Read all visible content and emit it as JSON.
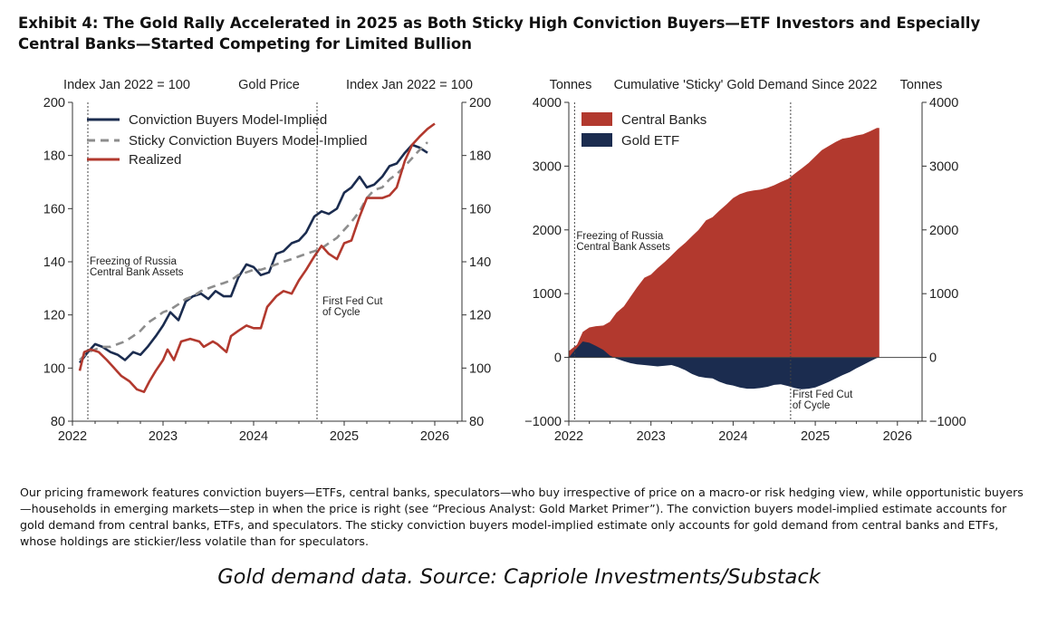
{
  "exhibit_title": "Exhibit 4: The Gold Rally Accelerated in 2025 as Both Sticky High Conviction Buyers—ETF Investors and Especially Central Banks—Started Competing for Limited Bullion",
  "footnote": "Our pricing framework features conviction buyers—ETFs, central banks, speculators—who buy irrespective of price on a macro-or risk hedging view, while opportunistic buyers—households in emerging markets—step in when the price is right (see “Precious Analyst: Gold Market Primer”). The conviction buyers model-implied estimate accounts for gold demand from central banks, ETFs, and speculators. The sticky conviction buyers model-implied estimate only accounts for gold demand from central banks and ETFs, whose holdings are stickier/less volatile than for speculators.",
  "source": "Gold demand data. Source: Capriole Investments/Substack",
  "colors": {
    "navy": "#1b2c4f",
    "red": "#b2392e",
    "gray": "#8d8d8d",
    "axis": "#333333"
  },
  "chart_data": [
    {
      "type": "line",
      "title": "Gold Price",
      "ylabel_left": "Index Jan 2022 = 100",
      "ylabel_right": "Index Jan 2022 = 100",
      "xlim": [
        2022.0,
        2026.3
      ],
      "ylim": [
        80,
        200
      ],
      "xticks": [
        2022,
        2023,
        2024,
        2025,
        2026
      ],
      "yticks": [
        80,
        100,
        120,
        140,
        160,
        180,
        200
      ],
      "series": [
        {
          "name": "Conviction Buyers Model-Implied",
          "color": "#1b2c4f",
          "style": "solid",
          "x": [
            2022.08,
            2022.17,
            2022.25,
            2022.33,
            2022.42,
            2022.5,
            2022.58,
            2022.67,
            2022.75,
            2022.83,
            2022.92,
            2023.0,
            2023.08,
            2023.17,
            2023.25,
            2023.33,
            2023.42,
            2023.5,
            2023.58,
            2023.67,
            2023.75,
            2023.83,
            2023.92,
            2024.0,
            2024.08,
            2024.17,
            2024.25,
            2024.33,
            2024.42,
            2024.5,
            2024.58,
            2024.67,
            2024.75,
            2024.83,
            2024.92,
            2025.0,
            2025.08,
            2025.17,
            2025.25,
            2025.33,
            2025.42,
            2025.5,
            2025.58,
            2025.67,
            2025.75,
            2025.83,
            2025.92
          ],
          "y": [
            102,
            106,
            109,
            108,
            106,
            105,
            103,
            106,
            105,
            108,
            112,
            116,
            121,
            118,
            125,
            127,
            128,
            126,
            129,
            127,
            127,
            134,
            139,
            138,
            135,
            136,
            143,
            144,
            147,
            148,
            151,
            157,
            159,
            158,
            160,
            166,
            168,
            172,
            168,
            169,
            172,
            176,
            177,
            181,
            184,
            183,
            181
          ]
        },
        {
          "name": "Sticky Conviction Buyers Model-Implied",
          "color": "#8d8d8d",
          "style": "dashed",
          "x": [
            2022.08,
            2022.17,
            2022.25,
            2022.33,
            2022.42,
            2022.5,
            2022.58,
            2022.67,
            2022.75,
            2022.83,
            2022.92,
            2023.0,
            2023.08,
            2023.17,
            2023.25,
            2023.33,
            2023.42,
            2023.5,
            2023.58,
            2023.67,
            2023.75,
            2023.83,
            2023.92,
            2024.0,
            2024.08,
            2024.17,
            2024.25,
            2024.33,
            2024.42,
            2024.5,
            2024.58,
            2024.67,
            2024.75,
            2024.83,
            2024.92,
            2025.0,
            2025.08,
            2025.17,
            2025.25,
            2025.33,
            2025.42,
            2025.5,
            2025.58,
            2025.67,
            2025.75,
            2025.83,
            2025.92
          ],
          "y": [
            103,
            106,
            107,
            108,
            108,
            109,
            110,
            112,
            114,
            117,
            119,
            121,
            122,
            124,
            126,
            127,
            129,
            130,
            131,
            132,
            133,
            135,
            136,
            137,
            137,
            138,
            139,
            140,
            141,
            142,
            143,
            144,
            145,
            147,
            149,
            152,
            155,
            159,
            164,
            167,
            168,
            171,
            173,
            176,
            179,
            182,
            185
          ]
        },
        {
          "name": "Realized",
          "color": "#b2392e",
          "style": "solid",
          "x": [
            2022.08,
            2022.13,
            2022.2,
            2022.29,
            2022.38,
            2022.46,
            2022.54,
            2022.63,
            2022.71,
            2022.79,
            2022.85,
            2022.92,
            2023.0,
            2023.05,
            2023.12,
            2023.2,
            2023.3,
            2023.4,
            2023.45,
            2023.55,
            2023.6,
            2023.7,
            2023.75,
            2023.83,
            2023.92,
            2024.0,
            2024.08,
            2024.15,
            2024.25,
            2024.33,
            2024.42,
            2024.5,
            2024.58,
            2024.67,
            2024.75,
            2024.83,
            2024.92,
            2025.0,
            2025.08,
            2025.17,
            2025.25,
            2025.33,
            2025.42,
            2025.5,
            2025.58,
            2025.67,
            2025.75,
            2025.83,
            2025.92,
            2026.0
          ],
          "y": [
            99,
            106,
            107,
            106,
            103,
            100,
            97,
            95,
            92,
            91,
            95,
            99,
            103,
            107,
            103,
            110,
            111,
            110,
            108,
            110,
            109,
            106,
            112,
            114,
            116,
            115,
            115,
            123,
            127,
            129,
            128,
            133,
            137,
            142,
            146,
            143,
            141,
            147,
            148,
            157,
            164,
            164,
            164,
            165,
            168,
            178,
            184,
            187,
            190,
            192
          ]
        }
      ],
      "annotations": [
        {
          "x": 2022.17,
          "lines": [
            "Freezing of Russia",
            "Central Bank Assets"
          ]
        },
        {
          "x": 2024.7,
          "lines": [
            "First Fed Cut",
            "of Cycle"
          ]
        }
      ]
    },
    {
      "type": "area",
      "title": "Cumulative 'Sticky' Gold Demand Since 2022",
      "ylabel_left": "Tonnes",
      "ylabel_right": "Tonnes",
      "xlim": [
        2022.0,
        2026.3
      ],
      "ylim": [
        -1000,
        4000
      ],
      "xticks": [
        2022,
        2023,
        2024,
        2025,
        2026
      ],
      "yticks": [
        -1000,
        0,
        1000,
        2000,
        3000,
        4000
      ],
      "series": [
        {
          "name": "Central Banks",
          "color": "#b2392e",
          "x": [
            2022.0,
            2022.05,
            2022.1,
            2022.17,
            2022.25,
            2022.33,
            2022.42,
            2022.5,
            2022.58,
            2022.67,
            2022.75,
            2022.83,
            2022.92,
            2023.0,
            2023.08,
            2023.17,
            2023.25,
            2023.33,
            2023.42,
            2023.5,
            2023.58,
            2023.67,
            2023.75,
            2023.83,
            2023.92,
            2024.0,
            2024.08,
            2024.17,
            2024.25,
            2024.33,
            2024.42,
            2024.5,
            2024.58,
            2024.67,
            2024.75,
            2024.83,
            2024.92,
            2025.0,
            2025.08,
            2025.17,
            2025.25,
            2025.33,
            2025.42,
            2025.5,
            2025.58,
            2025.67,
            2025.75,
            2025.78
          ],
          "y": [
            100,
            150,
            200,
            400,
            470,
            490,
            500,
            560,
            700,
            800,
            950,
            1100,
            1250,
            1300,
            1400,
            1500,
            1600,
            1700,
            1800,
            1900,
            2000,
            2150,
            2200,
            2300,
            2400,
            2500,
            2560,
            2600,
            2620,
            2630,
            2660,
            2700,
            2750,
            2800,
            2880,
            2960,
            3050,
            3150,
            3250,
            3320,
            3380,
            3430,
            3450,
            3480,
            3500,
            3550,
            3600,
            3600
          ]
        },
        {
          "name": "Gold ETF",
          "color": "#1b2c4f",
          "x": [
            2022.0,
            2022.05,
            2022.1,
            2022.17,
            2022.25,
            2022.33,
            2022.42,
            2022.5,
            2022.58,
            2022.67,
            2022.75,
            2022.83,
            2022.92,
            2023.0,
            2023.08,
            2023.17,
            2023.25,
            2023.33,
            2023.42,
            2023.5,
            2023.58,
            2023.67,
            2023.75,
            2023.83,
            2023.92,
            2024.0,
            2024.08,
            2024.17,
            2024.25,
            2024.33,
            2024.42,
            2024.5,
            2024.58,
            2024.67,
            2024.75,
            2024.83,
            2024.92,
            2025.0,
            2025.08,
            2025.17,
            2025.25,
            2025.33,
            2025.42,
            2025.5,
            2025.58,
            2025.67,
            2025.75,
            2025.78
          ],
          "y": [
            0,
            80,
            150,
            250,
            230,
            180,
            120,
            30,
            -20,
            -60,
            -90,
            -110,
            -120,
            -130,
            -140,
            -130,
            -120,
            -150,
            -200,
            -260,
            -300,
            -320,
            -330,
            -380,
            -420,
            -440,
            -470,
            -490,
            -490,
            -480,
            -460,
            -430,
            -420,
            -450,
            -480,
            -500,
            -490,
            -470,
            -430,
            -380,
            -330,
            -280,
            -230,
            -170,
            -120,
            -60,
            -10,
            0
          ]
        }
      ],
      "annotations": [
        {
          "x": 2022.07,
          "lines": [
            "Freezing of Russia",
            "Central Bank Assets"
          ]
        },
        {
          "x": 2024.7,
          "lines": [
            "First Fed Cut",
            "of Cycle"
          ]
        }
      ]
    }
  ]
}
